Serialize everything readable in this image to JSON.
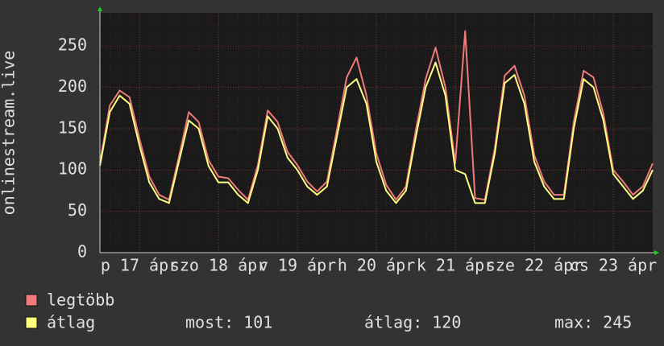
{
  "chart_data": {
    "type": "line",
    "y_label": "onlinestream.live",
    "x": [
      0,
      3,
      6,
      9,
      12,
      15,
      18,
      21,
      24,
      27,
      30,
      33,
      36,
      39,
      42,
      45,
      48,
      51,
      54,
      57,
      60,
      63,
      66,
      69,
      72,
      75,
      78,
      81,
      84,
      87,
      90,
      93,
      96,
      99,
      102,
      105,
      108,
      111,
      114,
      117,
      120,
      123,
      126,
      129,
      132,
      135,
      138,
      141,
      144,
      147,
      150,
      153,
      156,
      159,
      162,
      165,
      168
    ],
    "xlim": [
      0,
      168
    ],
    "xticks": [
      {
        "value": 12,
        "label": "p 17 ápr"
      },
      {
        "value": 36,
        "label": "szo 18 ápr"
      },
      {
        "value": 60,
        "label": "v 19 ápr"
      },
      {
        "value": 84,
        "label": "h 20 ápr"
      },
      {
        "value": 108,
        "label": "k 21 ápr"
      },
      {
        "value": 132,
        "label": "sze 22 ápr"
      },
      {
        "value": 156,
        "label": "cs 23 ápr"
      }
    ],
    "ylim": [
      0,
      290
    ],
    "yticks": [
      0,
      50,
      100,
      150,
      200,
      250
    ],
    "grid": true,
    "series": [
      {
        "name": "legtöbb",
        "color": "#f07a7a",
        "values": [
          108,
          178,
          196,
          188,
          138,
          92,
          70,
          64,
          116,
          170,
          158,
          112,
          92,
          90,
          76,
          64,
          106,
          172,
          158,
          122,
          106,
          86,
          74,
          86,
          148,
          212,
          236,
          190,
          120,
          82,
          64,
          80,
          148,
          210,
          248,
          200,
          108,
          268,
          66,
          64,
          126,
          214,
          226,
          190,
          118,
          86,
          70,
          70,
          158,
          220,
          212,
          168,
          100,
          86,
          70,
          80,
          108
        ]
      },
      {
        "name": "átlag",
        "color": "#ffff80",
        "values": [
          105,
          170,
          190,
          180,
          130,
          85,
          65,
          60,
          110,
          160,
          150,
          105,
          85,
          85,
          70,
          60,
          100,
          165,
          150,
          115,
          100,
          80,
          70,
          80,
          140,
          200,
          210,
          180,
          110,
          75,
          60,
          75,
          140,
          200,
          230,
          190,
          100,
          95,
          60,
          60,
          120,
          205,
          215,
          180,
          110,
          80,
          65,
          65,
          150,
          210,
          200,
          160,
          95,
          80,
          65,
          75,
          100
        ]
      }
    ],
    "stats": [
      {
        "label": "most:",
        "value": 101
      },
      {
        "label": "átlag:",
        "value": 120
      },
      {
        "label": "max:",
        "value": 245
      }
    ]
  }
}
